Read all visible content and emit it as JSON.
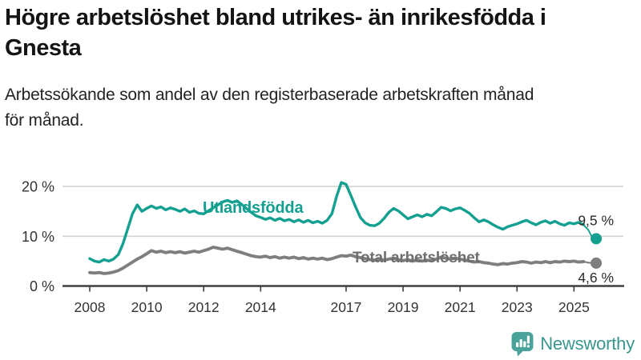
{
  "title_lines": [
    "Högre arbetslöshet bland utrikes- än inrikesfödda i",
    "Gnesta"
  ],
  "subtitle_lines": [
    "Arbetssökande som andel av den registerbaserade arbetskraften månad",
    "för månad."
  ],
  "logo": {
    "text": "Newsworthy",
    "color": "#3a958e",
    "icon_color": "#4aa39b",
    "icon": "newsworthy-chart-bubble-icon"
  },
  "chart_data": {
    "type": "line",
    "unit": "%",
    "grid": "horizontal-only",
    "legend_position": "labels-on-lines",
    "x_start": 2008.0,
    "x_step": 0.16667,
    "x_ticks": [
      2008,
      2010,
      2012,
      2014,
      2017,
      2019,
      2021,
      2023,
      2025
    ],
    "x_tick_labels": [
      "2008",
      "2010",
      "2012",
      "2014",
      "2017",
      "2019",
      "2021",
      "2023",
      "2025"
    ],
    "y_ticks": [
      0,
      10,
      20
    ],
    "y_tick_labels": [
      "0 %",
      "10 %",
      "20 %"
    ],
    "ylim": [
      0,
      22
    ],
    "xlim": [
      2007.0,
      2026.8
    ],
    "series": [
      {
        "id": "utlandsfodda",
        "name": "Utlandsfödda",
        "color": "#14a090",
        "label_color": "#14a090",
        "end_label": "9,5 %",
        "end_value": 9.5,
        "values": [
          5.5,
          5.0,
          4.8,
          5.3,
          5.0,
          5.4,
          6.3,
          8.5,
          11.5,
          14.5,
          16.3,
          15.0,
          15.6,
          16.1,
          15.6,
          15.9,
          15.3,
          15.7,
          15.4,
          15.0,
          15.5,
          14.8,
          15.1,
          14.6,
          14.5,
          15.1,
          15.7,
          16.3,
          16.9,
          17.2,
          16.8,
          17.1,
          16.4,
          15.6,
          14.8,
          14.1,
          13.8,
          13.4,
          13.7,
          13.2,
          13.6,
          13.1,
          13.4,
          12.9,
          13.3,
          12.8,
          13.2,
          12.7,
          13.0,
          12.6,
          13.2,
          14.5,
          18.0,
          20.8,
          20.4,
          18.2,
          15.9,
          13.8,
          12.7,
          12.2,
          12.1,
          12.6,
          13.6,
          14.8,
          15.6,
          15.1,
          14.3,
          13.5,
          13.9,
          14.3,
          13.9,
          14.4,
          14.1,
          14.9,
          15.8,
          15.6,
          15.1,
          15.5,
          15.7,
          15.2,
          14.6,
          13.7,
          12.9,
          13.3,
          12.9,
          12.3,
          11.8,
          11.4,
          11.9,
          12.2,
          12.5,
          12.9,
          13.2,
          12.7,
          12.3,
          12.8,
          13.1,
          12.6,
          13.0,
          12.5,
          12.2,
          12.7,
          12.5,
          12.8,
          12.3,
          11.3,
          9.5
        ]
      },
      {
        "id": "total-arbetsloshet",
        "name": "Total arbetslöshet",
        "color": "#7e7e7e",
        "label_color": "#6e6e6e",
        "end_label": "4,6 %",
        "end_value": 4.6,
        "values": [
          2.7,
          2.6,
          2.7,
          2.5,
          2.6,
          2.8,
          3.1,
          3.6,
          4.2,
          4.8,
          5.4,
          5.9,
          6.5,
          7.1,
          6.8,
          7.0,
          6.7,
          6.9,
          6.7,
          6.9,
          6.6,
          6.8,
          7.0,
          6.8,
          7.1,
          7.4,
          7.8,
          7.6,
          7.4,
          7.6,
          7.3,
          7.0,
          6.7,
          6.4,
          6.1,
          5.9,
          5.8,
          6.0,
          5.7,
          5.9,
          5.6,
          5.8,
          5.6,
          5.8,
          5.5,
          5.7,
          5.4,
          5.6,
          5.4,
          5.6,
          5.3,
          5.5,
          5.8,
          6.1,
          6.0,
          6.2,
          5.9,
          5.7,
          5.5,
          5.3,
          5.2,
          5.4,
          5.2,
          5.4,
          5.6,
          5.3,
          5.1,
          5.3,
          5.0,
          5.2,
          5.0,
          5.2,
          5.1,
          5.4,
          5.8,
          5.6,
          5.4,
          5.6,
          5.4,
          5.2,
          5.0,
          4.8,
          4.9,
          4.7,
          4.6,
          4.4,
          4.3,
          4.5,
          4.4,
          4.6,
          4.7,
          4.9,
          4.8,
          4.6,
          4.8,
          4.7,
          4.9,
          4.7,
          4.9,
          4.8,
          5.0,
          4.9,
          5.0,
          4.8,
          4.9,
          4.7,
          4.6
        ]
      }
    ]
  }
}
